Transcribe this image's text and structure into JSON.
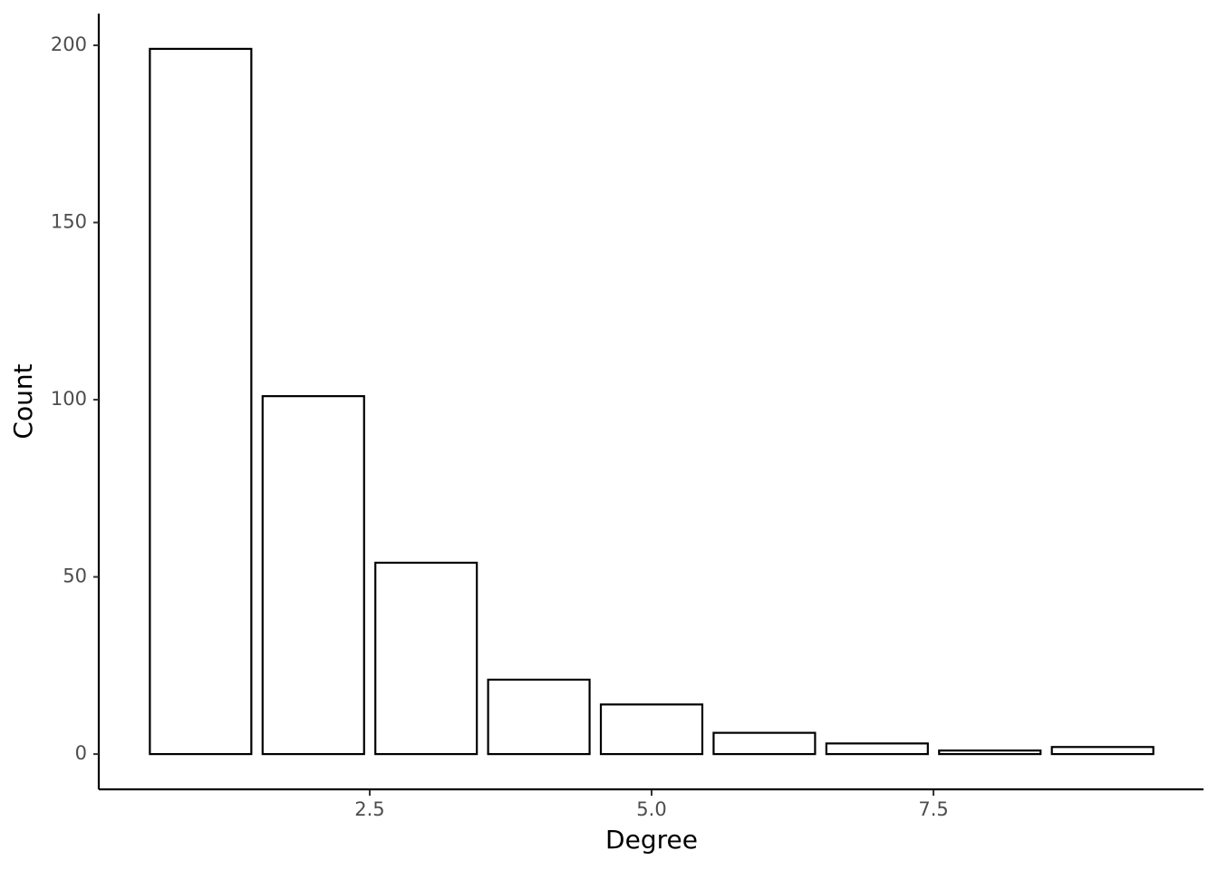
{
  "chart_data": {
    "type": "bar",
    "x": [
      1,
      2,
      3,
      4,
      5,
      6,
      7,
      8,
      9
    ],
    "values": [
      199,
      101,
      54,
      21,
      14,
      6,
      3,
      1,
      2
    ],
    "color": "#ffffff",
    "edgecolor": "#000000",
    "xlabel": "Degree",
    "ylabel": "Count",
    "xlim": [
      0.105,
      9.895
    ],
    "xticks": [
      2.5,
      {
        "value": 5,
        "label": "5.0"
      },
      7.5
    ],
    "ylim": [
      -9.95,
      208.95
    ],
    "yticks": [
      0,
      50,
      100,
      150,
      200
    ],
    "grid": false
  }
}
